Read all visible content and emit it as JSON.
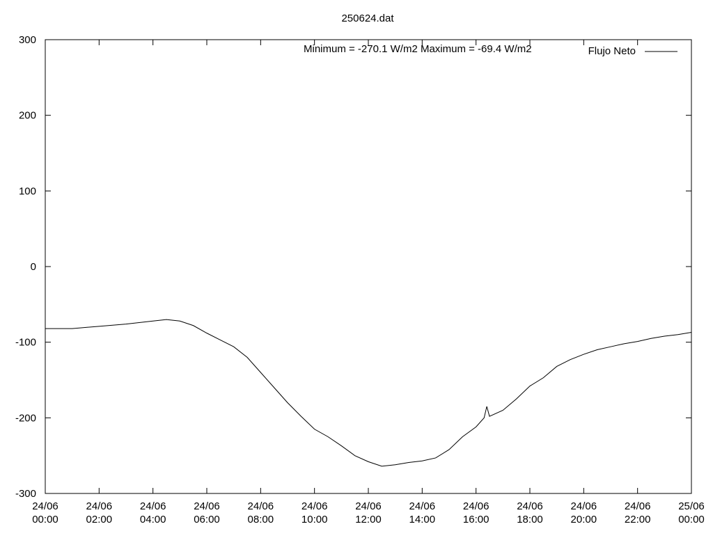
{
  "chart_data": {
    "type": "line",
    "title": "250624.dat",
    "annotation": "Minimum = -270.1 W/m2  Maximum = -69.4 W/m2",
    "x": [
      0,
      1,
      2,
      3,
      4,
      4.5,
      5,
      5.5,
      6,
      6.5,
      7,
      7.5,
      8,
      8.5,
      9,
      9.5,
      10,
      10.5,
      11,
      11.5,
      12,
      12.5,
      13,
      13.5,
      14,
      14.5,
      15,
      15.5,
      16,
      16.3,
      16.4,
      16.5,
      17,
      17.5,
      18,
      18.5,
      19,
      19.5,
      20,
      20.5,
      21,
      21.5,
      22,
      22.5,
      23,
      23.5,
      24
    ],
    "series": [
      {
        "name": "Flujo Neto",
        "color": "#000000",
        "values": [
          -82,
          -82,
          -79,
          -76,
          -72,
          -70,
          -72,
          -78,
          -88,
          -97,
          -106,
          -120,
          -140,
          -160,
          -180,
          -198,
          -215,
          -225,
          -237,
          -250,
          -258,
          -264,
          -262,
          -259,
          -257,
          -253,
          -242,
          -225,
          -212,
          -200,
          -185,
          -198,
          -190,
          -175,
          -158,
          -147,
          -132,
          -123,
          -116,
          -110,
          -106,
          -102,
          -99,
          -95,
          -92,
          -90,
          -87
        ]
      }
    ],
    "xlim": [
      0,
      24
    ],
    "xticks": [
      {
        "value": 0,
        "label": "24/06 00:00"
      },
      {
        "value": 2,
        "label": "24/06 02:00"
      },
      {
        "value": 4,
        "label": "24/06 04:00"
      },
      {
        "value": 6,
        "label": "24/06 06:00"
      },
      {
        "value": 8,
        "label": "24/06 08:00"
      },
      {
        "value": 10,
        "label": "24/06 10:00"
      },
      {
        "value": 12,
        "label": "24/06 12:00"
      },
      {
        "value": 14,
        "label": "24/06 14:00"
      },
      {
        "value": 16,
        "label": "24/06 16:00"
      },
      {
        "value": 18,
        "label": "24/06 18:00"
      },
      {
        "value": 20,
        "label": "24/06 20:00"
      },
      {
        "value": 22,
        "label": "24/06 22:00"
      },
      {
        "value": 24,
        "label": "25/06 00:00"
      }
    ],
    "ylim": [
      -300,
      300
    ],
    "yticks": [
      -300,
      -200,
      -100,
      0,
      100,
      200,
      300
    ],
    "legend": "top-right",
    "grid": false
  }
}
